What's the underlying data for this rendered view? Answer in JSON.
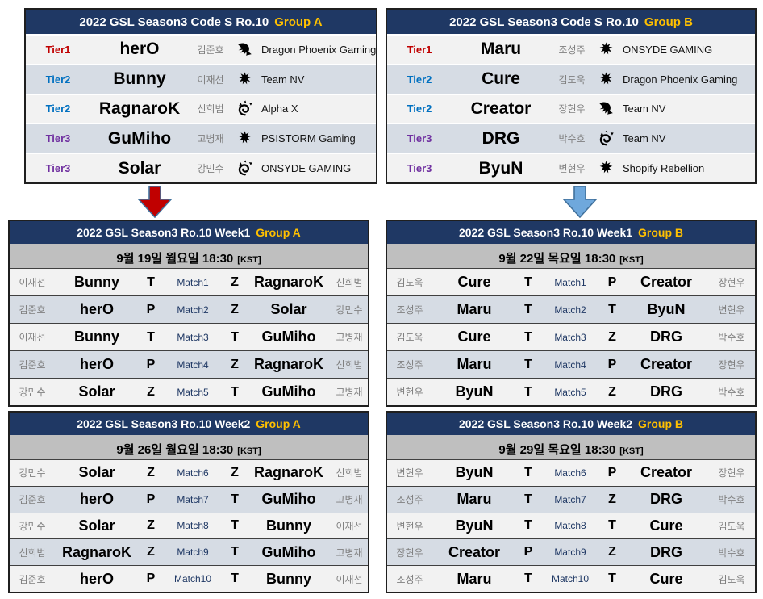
{
  "colors": {
    "navy": "#1F3864",
    "gold": "#FFC000",
    "tier1": "#C00000",
    "tier2": "#0070C0",
    "tier3": "#7030A0",
    "row_light": "#F2F2F2",
    "row_blue": "#D6DCE4",
    "date_bg": "#BFBFBF",
    "korean_gray": "#808080",
    "arrow_red": "#C00000",
    "arrow_blue": "#6FA8DC",
    "arrow_outline": "#41719C"
  },
  "rosters": [
    {
      "title_main": "2022 GSL Season3 Code S Ro.10",
      "title_group": "Group A",
      "rows": [
        {
          "tier": "Tier1",
          "player": "herO",
          "korean": "김준호",
          "race": "protoss",
          "team": "Dragon Phoenix Gaming"
        },
        {
          "tier": "Tier2",
          "player": "Bunny",
          "korean": "이재선",
          "race": "terran",
          "team": "Team NV"
        },
        {
          "tier": "Tier2",
          "player": "RagnaroK",
          "korean": "신희범",
          "race": "zerg",
          "team": "Alpha X"
        },
        {
          "tier": "Tier3",
          "player": "GuMiho",
          "korean": "고병재",
          "race": "terran",
          "team": "PSISTORM Gaming"
        },
        {
          "tier": "Tier3",
          "player": "Solar",
          "korean": "강민수",
          "race": "zerg",
          "team": "ONSYDE GAMING"
        }
      ]
    },
    {
      "title_main": "2022 GSL Season3 Code S Ro.10",
      "title_group": "Group B",
      "rows": [
        {
          "tier": "Tier1",
          "player": "Maru",
          "korean": "조성주",
          "race": "terran",
          "team": "ONSYDE GAMING"
        },
        {
          "tier": "Tier2",
          "player": "Cure",
          "korean": "김도욱",
          "race": "terran",
          "team": "Dragon Phoenix Gaming"
        },
        {
          "tier": "Tier2",
          "player": "Creator",
          "korean": "장현우",
          "race": "protoss",
          "team": "Team NV"
        },
        {
          "tier": "Tier3",
          "player": "DRG",
          "korean": "박수호",
          "race": "zerg",
          "team": "Team NV"
        },
        {
          "tier": "Tier3",
          "player": "ByuN",
          "korean": "변현우",
          "race": "terran",
          "team": "Shopify Rebellion"
        }
      ]
    }
  ],
  "arrows": {
    "left": {
      "shape": "down-arrow",
      "color": "#C00000"
    },
    "right": {
      "shape": "down-arrow",
      "color": "#6FA8DC"
    }
  },
  "schedules": [
    {
      "title_main": "2022 GSL Season3 Ro.10 Week1",
      "title_group": "Group A",
      "date": "9월 19일 월요일 18:30",
      "kst": "[KST]",
      "matches": [
        {
          "left_korean": "이재선",
          "left_player": "Bunny",
          "left_race": "T",
          "label": "Match1",
          "right_race": "Z",
          "right_player": "RagnaroK",
          "right_korean": "신희범"
        },
        {
          "left_korean": "김준호",
          "left_player": "herO",
          "left_race": "P",
          "label": "Match2",
          "right_race": "Z",
          "right_player": "Solar",
          "right_korean": "강민수"
        },
        {
          "left_korean": "이재선",
          "left_player": "Bunny",
          "left_race": "T",
          "label": "Match3",
          "right_race": "T",
          "right_player": "GuMiho",
          "right_korean": "고병재"
        },
        {
          "left_korean": "김준호",
          "left_player": "herO",
          "left_race": "P",
          "label": "Match4",
          "right_race": "Z",
          "right_player": "RagnaroK",
          "right_korean": "신희범"
        },
        {
          "left_korean": "강민수",
          "left_player": "Solar",
          "left_race": "Z",
          "label": "Match5",
          "right_race": "T",
          "right_player": "GuMiho",
          "right_korean": "고병재"
        }
      ]
    },
    {
      "title_main": "2022 GSL Season3 Ro.10 Week1",
      "title_group": "Group B",
      "date": "9월 22일 목요일 18:30",
      "kst": "[KST]",
      "matches": [
        {
          "left_korean": "김도욱",
          "left_player": "Cure",
          "left_race": "T",
          "label": "Match1",
          "right_race": "P",
          "right_player": "Creator",
          "right_korean": "장현우"
        },
        {
          "left_korean": "조성주",
          "left_player": "Maru",
          "left_race": "T",
          "label": "Match2",
          "right_race": "T",
          "right_player": "ByuN",
          "right_korean": "변현우"
        },
        {
          "left_korean": "김도욱",
          "left_player": "Cure",
          "left_race": "T",
          "label": "Match3",
          "right_race": "Z",
          "right_player": "DRG",
          "right_korean": "박수호"
        },
        {
          "left_korean": "조성주",
          "left_player": "Maru",
          "left_race": "T",
          "label": "Match4",
          "right_race": "P",
          "right_player": "Creator",
          "right_korean": "장현우"
        },
        {
          "left_korean": "변현우",
          "left_player": "ByuN",
          "left_race": "T",
          "label": "Match5",
          "right_race": "Z",
          "right_player": "DRG",
          "right_korean": "박수호"
        }
      ]
    },
    {
      "title_main": "2022 GSL Season3 Ro.10 Week2",
      "title_group": "Group A",
      "date": "9월 26일 월요일 18:30",
      "kst": "[KST]",
      "matches": [
        {
          "left_korean": "강민수",
          "left_player": "Solar",
          "left_race": "Z",
          "label": "Match6",
          "right_race": "Z",
          "right_player": "RagnaroK",
          "right_korean": "신희범"
        },
        {
          "left_korean": "김준호",
          "left_player": "herO",
          "left_race": "P",
          "label": "Match7",
          "right_race": "T",
          "right_player": "GuMiho",
          "right_korean": "고병재"
        },
        {
          "left_korean": "강민수",
          "left_player": "Solar",
          "left_race": "Z",
          "label": "Match8",
          "right_race": "T",
          "right_player": "Bunny",
          "right_korean": "이재선"
        },
        {
          "left_korean": "신희범",
          "left_player": "RagnaroK",
          "left_race": "Z",
          "label": "Match9",
          "right_race": "T",
          "right_player": "GuMiho",
          "right_korean": "고병재"
        },
        {
          "left_korean": "김준호",
          "left_player": "herO",
          "left_race": "P",
          "label": "Match10",
          "right_race": "T",
          "right_player": "Bunny",
          "right_korean": "이재선"
        }
      ]
    },
    {
      "title_main": "2022 GSL Season3 Ro.10 Week2",
      "title_group": "Group B",
      "date": "9월 29일 목요일 18:30",
      "kst": "[KST]",
      "matches": [
        {
          "left_korean": "변현우",
          "left_player": "ByuN",
          "left_race": "T",
          "label": "Match6",
          "right_race": "P",
          "right_player": "Creator",
          "right_korean": "장현우"
        },
        {
          "left_korean": "조성주",
          "left_player": "Maru",
          "left_race": "T",
          "label": "Match7",
          "right_race": "Z",
          "right_player": "DRG",
          "right_korean": "박수호"
        },
        {
          "left_korean": "변현우",
          "left_player": "ByuN",
          "left_race": "T",
          "label": "Match8",
          "right_race": "T",
          "right_player": "Cure",
          "right_korean": "김도욱"
        },
        {
          "left_korean": "장현우",
          "left_player": "Creator",
          "left_race": "P",
          "label": "Match9",
          "right_race": "Z",
          "right_player": "DRG",
          "right_korean": "박수호"
        },
        {
          "left_korean": "조성주",
          "left_player": "Maru",
          "left_race": "T",
          "label": "Match10",
          "right_race": "T",
          "right_player": "Cure",
          "right_korean": "김도욱"
        }
      ]
    }
  ]
}
